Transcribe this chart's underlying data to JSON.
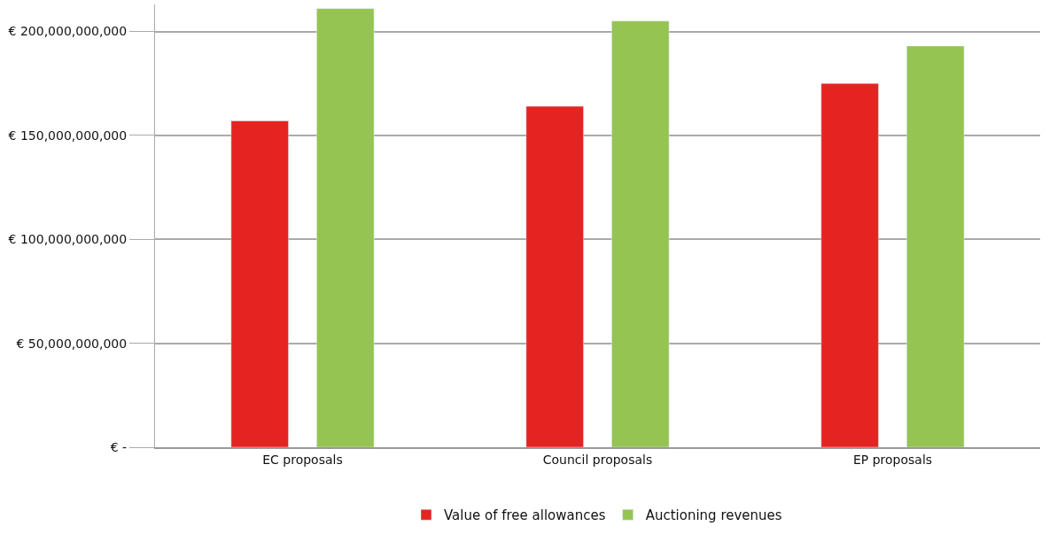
{
  "chart_data": {
    "type": "bar",
    "categories": [
      "EC proposals",
      "Council proposals",
      "EP proposals"
    ],
    "series": [
      {
        "name": "Value of free allowances",
        "color": "#e52421",
        "values": [
          157000000000,
          164000000000,
          175000000000
        ]
      },
      {
        "name": "Auctioning revenues",
        "color": "#95c453",
        "values": [
          211000000000,
          205000000000,
          193000000000
        ]
      }
    ],
    "ylim": [
      0,
      213000000000
    ],
    "yticks": [
      {
        "value": 0,
        "label": "€ -"
      },
      {
        "value": 50000000000,
        "label": "€ 50,000,000,000"
      },
      {
        "value": 100000000000,
        "label": "€ 100,000,000,000"
      },
      {
        "value": 150000000000,
        "label": "€ 150,000,000,000"
      },
      {
        "value": 200000000000,
        "label": "€ 200,000,000,000"
      }
    ],
    "grid": "y",
    "legend": "bottom"
  }
}
